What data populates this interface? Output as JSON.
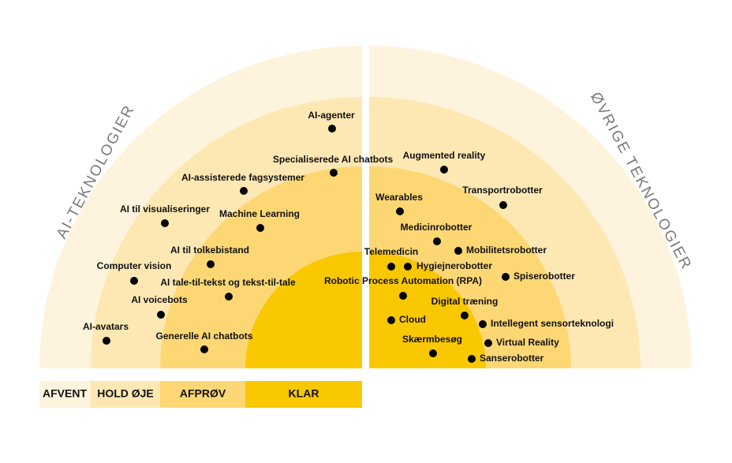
{
  "left_title": "AI-TEKNOLOGIER",
  "right_title": "ØVRIGE TEKNOLOGIER",
  "legend": [
    "AFVENT",
    "HOLD ØJE",
    "AFPRØV",
    "KLAR"
  ],
  "items": [
    {
      "label": "AI-agenter"
    },
    {
      "label": "Specialiserede AI chatbots"
    },
    {
      "label": "AI-assisterede fagsystemer"
    },
    {
      "label": "AI til visualiseringer"
    },
    {
      "label": "Machine Learning"
    },
    {
      "label": "AI til tolkebistand"
    },
    {
      "label": "Computer vision"
    },
    {
      "label": "AI tale-til-tekst og tekst-til-tale"
    },
    {
      "label": "AI voicebots"
    },
    {
      "label": "AI-avatars"
    },
    {
      "label": "Generelle AI chatbots"
    },
    {
      "label": "Augmented reality"
    },
    {
      "label": "Wearables"
    },
    {
      "label": "Transportrobotter"
    },
    {
      "label": "Medicinrobotter"
    },
    {
      "label": "Mobilitetsrobotter"
    },
    {
      "label": "Telemedicin"
    },
    {
      "label": "Hygiejnerobotter"
    },
    {
      "label": "Spiserobotter"
    },
    {
      "label": "Robotic Process Automation (RPA)"
    },
    {
      "label": "Digital træning"
    },
    {
      "label": "Intellegent sensorteknologi"
    },
    {
      "label": "Cloud"
    },
    {
      "label": "Skærmbesøg"
    },
    {
      "label": "Virtual Reality"
    },
    {
      "label": "Sanserobotter"
    }
  ]
}
